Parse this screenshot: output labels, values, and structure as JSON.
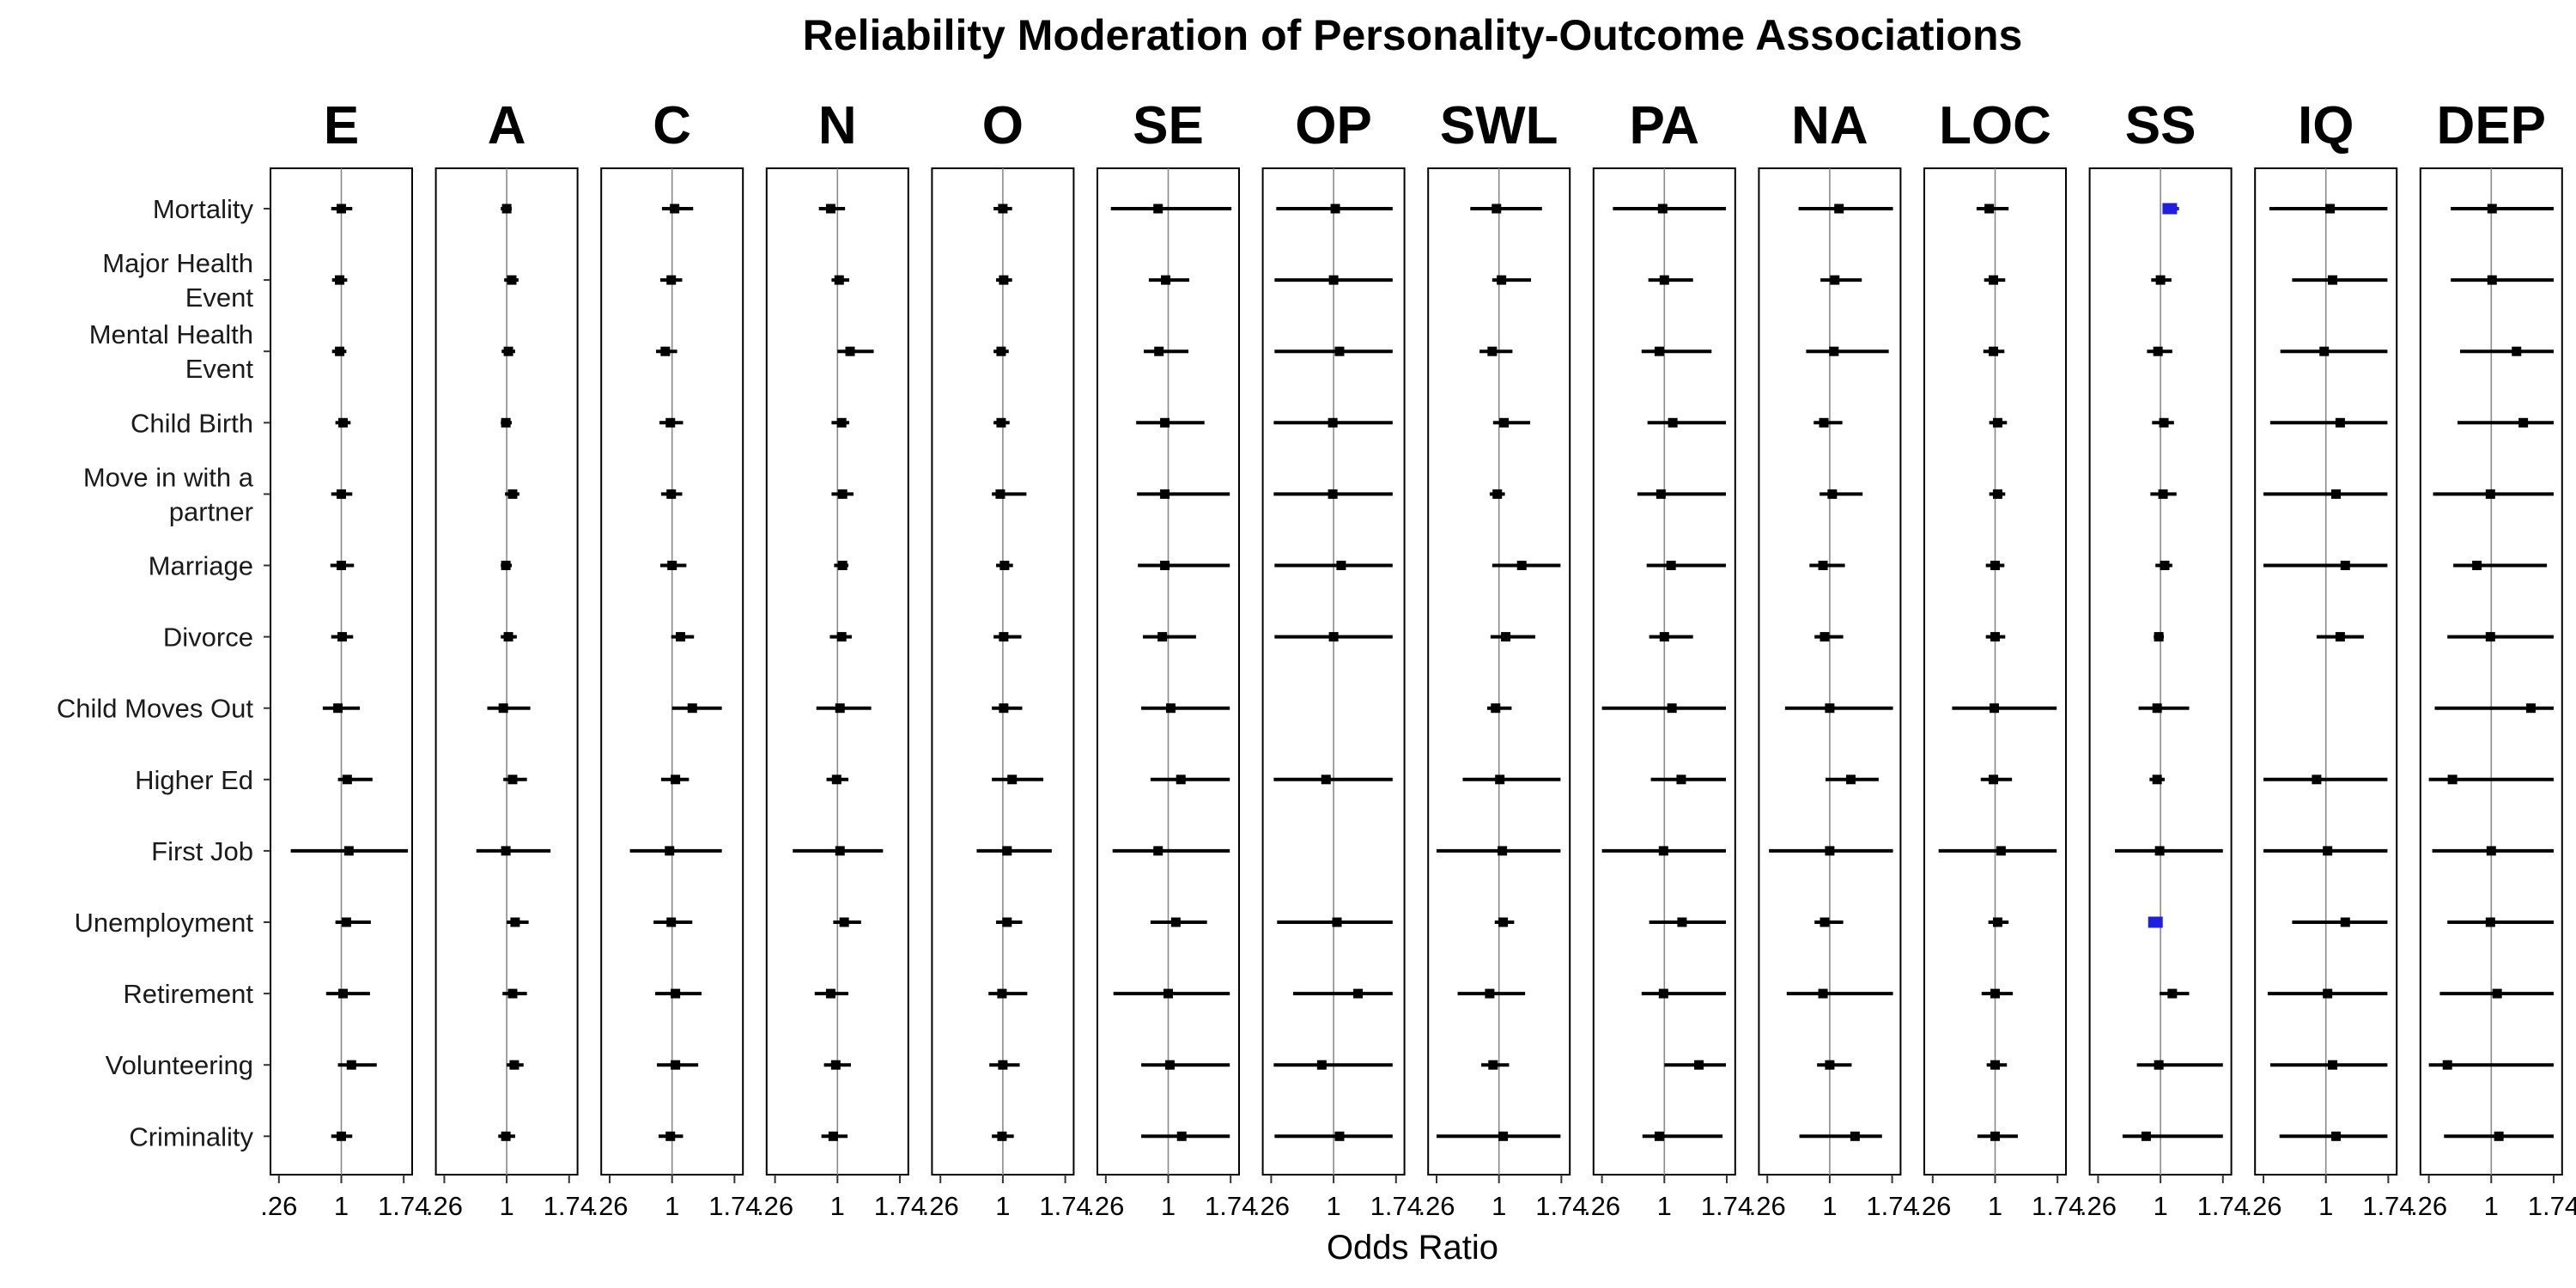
{
  "chart_data": {
    "type": "forest",
    "title": "Reliability Moderation of Personality-Outcome Associations",
    "xlabel": "Odds Ratio",
    "ylabel": "",
    "xlim": [
      0.16,
      1.84
    ],
    "x_tick_values": [
      0.26,
      1,
      1.74
    ],
    "x_tick_labels": [
      ".26",
      "1",
      "1.74"
    ],
    "reference_line": 1,
    "default_color": "#000000",
    "highlight_color": "#1f1fdd",
    "facets": [
      "E",
      "A",
      "C",
      "N",
      "O",
      "SE",
      "OP",
      "SWL",
      "PA",
      "NA",
      "LOC",
      "SS",
      "IQ",
      "DEP"
    ],
    "outcomes": [
      {
        "label": "Mortality",
        "lines": [
          "Mortality"
        ]
      },
      {
        "label": "Major Health Event",
        "lines": [
          "Major Health",
          "Event"
        ]
      },
      {
        "label": "Mental Health Event",
        "lines": [
          "Mental Health",
          "Event"
        ]
      },
      {
        "label": "Child Birth",
        "lines": [
          "Child Birth"
        ]
      },
      {
        "label": "Move in with a partner",
        "lines": [
          "Move in with a",
          "partner"
        ]
      },
      {
        "label": "Marriage",
        "lines": [
          "Marriage"
        ]
      },
      {
        "label": "Divorce",
        "lines": [
          "Divorce"
        ]
      },
      {
        "label": "Child Moves Out",
        "lines": [
          "Child Moves Out"
        ]
      },
      {
        "label": "Higher Ed",
        "lines": [
          "Higher Ed"
        ]
      },
      {
        "label": "First Job",
        "lines": [
          "First Job"
        ]
      },
      {
        "label": "Unemployment",
        "lines": [
          "Unemployment"
        ]
      },
      {
        "label": "Retirement",
        "lines": [
          "Retirement"
        ]
      },
      {
        "label": "Volunteering",
        "lines": [
          "Volunteering"
        ]
      },
      {
        "label": "Criminality",
        "lines": [
          "Criminality"
        ]
      }
    ],
    "series": [
      {
        "facet": "E",
        "or": [
          1.0,
          0.98,
          0.98,
          1.02,
          1.0,
          1.0,
          1.01,
          0.96,
          1.07,
          1.09,
          1.06,
          1.02,
          1.12,
          1.0
        ],
        "lo": [
          0.88,
          0.89,
          0.89,
          0.93,
          0.88,
          0.87,
          0.88,
          0.78,
          0.96,
          0.4,
          0.93,
          0.82,
          0.96,
          0.88
        ],
        "hi": [
          1.13,
          1.07,
          1.06,
          1.11,
          1.13,
          1.15,
          1.14,
          1.22,
          1.37,
          1.79,
          1.35,
          1.34,
          1.42,
          1.13
        ]
      },
      {
        "facet": "A",
        "or": [
          1.0,
          1.06,
          1.02,
          0.99,
          1.07,
          0.99,
          1.02,
          0.96,
          1.07,
          0.99,
          1.1,
          1.07,
          1.09,
          0.99
        ],
        "lo": [
          0.93,
          0.97,
          0.94,
          0.93,
          0.98,
          0.93,
          0.93,
          0.77,
          0.96,
          0.64,
          1.0,
          0.95,
          1.0,
          0.9
        ],
        "hi": [
          1.06,
          1.14,
          1.1,
          1.06,
          1.15,
          1.06,
          1.12,
          1.28,
          1.24,
          1.52,
          1.26,
          1.24,
          1.2,
          1.1
        ]
      },
      {
        "facet": "C",
        "or": [
          1.03,
          0.99,
          0.92,
          0.98,
          0.99,
          1.0,
          1.1,
          1.24,
          1.04,
          0.97,
          0.99,
          1.04,
          1.04,
          0.98
        ],
        "lo": [
          0.88,
          0.86,
          0.81,
          0.85,
          0.87,
          0.86,
          0.99,
          1.0,
          0.87,
          0.5,
          0.78,
          0.8,
          0.82,
          0.84
        ],
        "hi": [
          1.25,
          1.12,
          1.06,
          1.13,
          1.12,
          1.17,
          1.26,
          1.59,
          1.2,
          1.59,
          1.24,
          1.35,
          1.31,
          1.13
        ]
      },
      {
        "facet": "N",
        "or": [
          0.92,
          1.02,
          1.15,
          1.05,
          1.06,
          1.06,
          1.05,
          1.03,
          0.99,
          1.03,
          1.08,
          0.92,
          0.98,
          0.95
        ],
        "lo": [
          0.78,
          0.93,
          1.0,
          0.93,
          0.93,
          0.96,
          0.91,
          0.75,
          0.87,
          0.47,
          0.95,
          0.73,
          0.84,
          0.81
        ],
        "hi": [
          1.09,
          1.14,
          1.43,
          1.14,
          1.19,
          1.13,
          1.17,
          1.4,
          1.13,
          1.54,
          1.28,
          1.13,
          1.16,
          1.12
        ]
      },
      {
        "facet": "O",
        "or": [
          1.0,
          1.01,
          0.98,
          0.98,
          0.97,
          1.02,
          1.01,
          1.01,
          1.11,
          1.05,
          1.05,
          0.99,
          1.0,
          0.99
        ],
        "lo": [
          0.89,
          0.92,
          0.89,
          0.89,
          0.87,
          0.92,
          0.89,
          0.87,
          0.87,
          0.69,
          0.92,
          0.83,
          0.84,
          0.87
        ],
        "hi": [
          1.11,
          1.11,
          1.07,
          1.08,
          1.28,
          1.12,
          1.22,
          1.23,
          1.48,
          1.58,
          1.23,
          1.29,
          1.2,
          1.13
        ]
      },
      {
        "facet": "SE",
        "or": [
          0.88,
          0.97,
          0.89,
          0.96,
          0.96,
          0.96,
          0.93,
          1.03,
          1.15,
          0.88,
          1.09,
          1.0,
          1.02,
          1.16
        ],
        "lo": [
          0.32,
          0.77,
          0.71,
          0.62,
          0.63,
          0.64,
          0.7,
          0.68,
          0.79,
          0.34,
          0.79,
          0.35,
          0.68,
          0.68
        ],
        "hi": [
          1.75,
          1.25,
          1.24,
          1.43,
          1.73,
          1.73,
          1.33,
          1.73,
          1.73,
          1.73,
          1.46,
          1.73,
          1.73,
          1.73
        ]
      },
      {
        "facet": "OP",
        "or": [
          1.02,
          1.0,
          1.07,
          0.99,
          0.99,
          1.09,
          1.0,
          null,
          0.91,
          null,
          1.04,
          1.29,
          0.86,
          1.07
        ],
        "lo": [
          0.32,
          0.3,
          0.3,
          0.29,
          0.29,
          0.3,
          0.3,
          null,
          0.29,
          null,
          0.33,
          0.52,
          0.29,
          0.3
        ],
        "hi": [
          1.7,
          1.7,
          1.7,
          1.7,
          1.7,
          1.7,
          1.7,
          null,
          1.7,
          null,
          1.7,
          1.7,
          1.7,
          1.7
        ]
      },
      {
        "facet": "SWL",
        "or": [
          0.97,
          1.03,
          0.92,
          1.06,
          0.98,
          1.27,
          1.08,
          0.96,
          1.01,
          1.04,
          1.05,
          0.89,
          0.93,
          1.05
        ],
        "lo": [
          0.66,
          0.92,
          0.77,
          0.93,
          0.89,
          0.92,
          0.9,
          0.86,
          0.57,
          0.26,
          0.95,
          0.51,
          0.79,
          0.26
        ],
        "hi": [
          1.51,
          1.38,
          1.16,
          1.37,
          1.07,
          1.73,
          1.43,
          1.15,
          1.73,
          1.73,
          1.18,
          1.31,
          1.12,
          1.73
        ]
      },
      {
        "facet": "PA",
        "or": [
          0.98,
          1.0,
          0.94,
          1.1,
          0.96,
          1.08,
          1.0,
          1.09,
          1.2,
          0.99,
          1.21,
          0.99,
          1.41,
          0.94
        ],
        "lo": [
          0.39,
          0.81,
          0.73,
          0.8,
          0.68,
          0.79,
          0.82,
          0.26,
          0.84,
          0.26,
          0.82,
          0.73,
          1.0,
          0.74
        ],
        "hi": [
          1.73,
          1.34,
          1.56,
          1.73,
          1.73,
          1.73,
          1.34,
          1.73,
          1.73,
          1.73,
          1.73,
          1.73,
          1.73,
          1.69
        ]
      },
      {
        "facet": "NA",
        "or": [
          1.11,
          1.06,
          1.05,
          0.93,
          1.03,
          0.92,
          0.94,
          1.0,
          1.25,
          1.0,
          0.94,
          0.92,
          1.0,
          1.3
        ],
        "lo": [
          0.63,
          0.89,
          0.72,
          0.81,
          0.88,
          0.76,
          0.82,
          0.47,
          0.95,
          0.28,
          0.82,
          0.49,
          0.85,
          0.64
        ],
        "hi": [
          1.75,
          1.38,
          1.7,
          1.15,
          1.39,
          1.18,
          1.16,
          1.75,
          1.58,
          1.75,
          1.16,
          1.75,
          1.26,
          1.62
        ]
      },
      {
        "facet": "LOC",
        "or": [
          0.93,
          0.98,
          0.98,
          1.03,
          1.03,
          1.0,
          1.0,
          0.99,
          0.98,
          1.07,
          1.03,
          1.0,
          1.0,
          1.0
        ],
        "lo": [
          0.78,
          0.87,
          0.86,
          0.93,
          0.93,
          0.89,
          0.89,
          0.49,
          0.83,
          0.33,
          0.92,
          0.84,
          0.9,
          0.79
        ],
        "hi": [
          1.16,
          1.12,
          1.11,
          1.14,
          1.12,
          1.11,
          1.12,
          1.73,
          1.2,
          1.73,
          1.16,
          1.21,
          1.14,
          1.27
        ]
      },
      {
        "facet": "SS",
        "or": [
          1.11,
          1.0,
          0.97,
          1.04,
          1.03,
          1.05,
          0.98,
          0.96,
          0.96,
          0.99,
          0.94,
          1.14,
          0.98,
          0.83
        ],
        "lo": [
          1.03,
          0.89,
          0.84,
          0.9,
          0.88,
          0.94,
          0.92,
          0.74,
          0.87,
          0.46,
          0.91,
          0.99,
          0.72,
          0.55
        ],
        "hi": [
          1.22,
          1.13,
          1.14,
          1.16,
          1.19,
          1.14,
          1.04,
          1.34,
          1.05,
          1.74,
          0.98,
          1.34,
          1.74,
          1.74
        ]
      },
      {
        "facet": "IQ",
        "or": [
          1.05,
          1.08,
          0.98,
          1.17,
          1.12,
          1.23,
          1.17,
          null,
          0.89,
          1.02,
          1.23,
          1.02,
          1.08,
          1.12
        ],
        "lo": [
          0.33,
          0.6,
          0.46,
          0.34,
          0.26,
          0.26,
          0.89,
          null,
          0.26,
          0.26,
          0.6,
          0.31,
          0.34,
          0.45
        ],
        "hi": [
          1.73,
          1.73,
          1.73,
          1.73,
          1.73,
          1.73,
          1.45,
          null,
          1.73,
          1.73,
          1.73,
          1.73,
          1.73,
          1.73
        ]
      },
      {
        "facet": "DEP",
        "or": [
          1.01,
          1.01,
          1.3,
          1.38,
          0.99,
          0.83,
          0.99,
          1.47,
          0.54,
          1.0,
          0.99,
          1.07,
          0.48,
          1.09
        ],
        "lo": [
          0.52,
          0.52,
          0.63,
          0.6,
          0.31,
          0.55,
          0.48,
          0.33,
          0.26,
          0.3,
          0.48,
          0.39,
          0.26,
          0.44
        ],
        "hi": [
          1.74,
          1.74,
          1.74,
          1.74,
          1.74,
          1.66,
          1.74,
          1.74,
          1.74,
          1.74,
          1.74,
          1.74,
          1.74,
          1.74
        ]
      }
    ],
    "highlighted_points": [
      {
        "facet": "SS",
        "outcome": "Mortality"
      },
      {
        "facet": "SS",
        "outcome": "Unemployment"
      }
    ],
    "grid": false,
    "legend": "none"
  }
}
